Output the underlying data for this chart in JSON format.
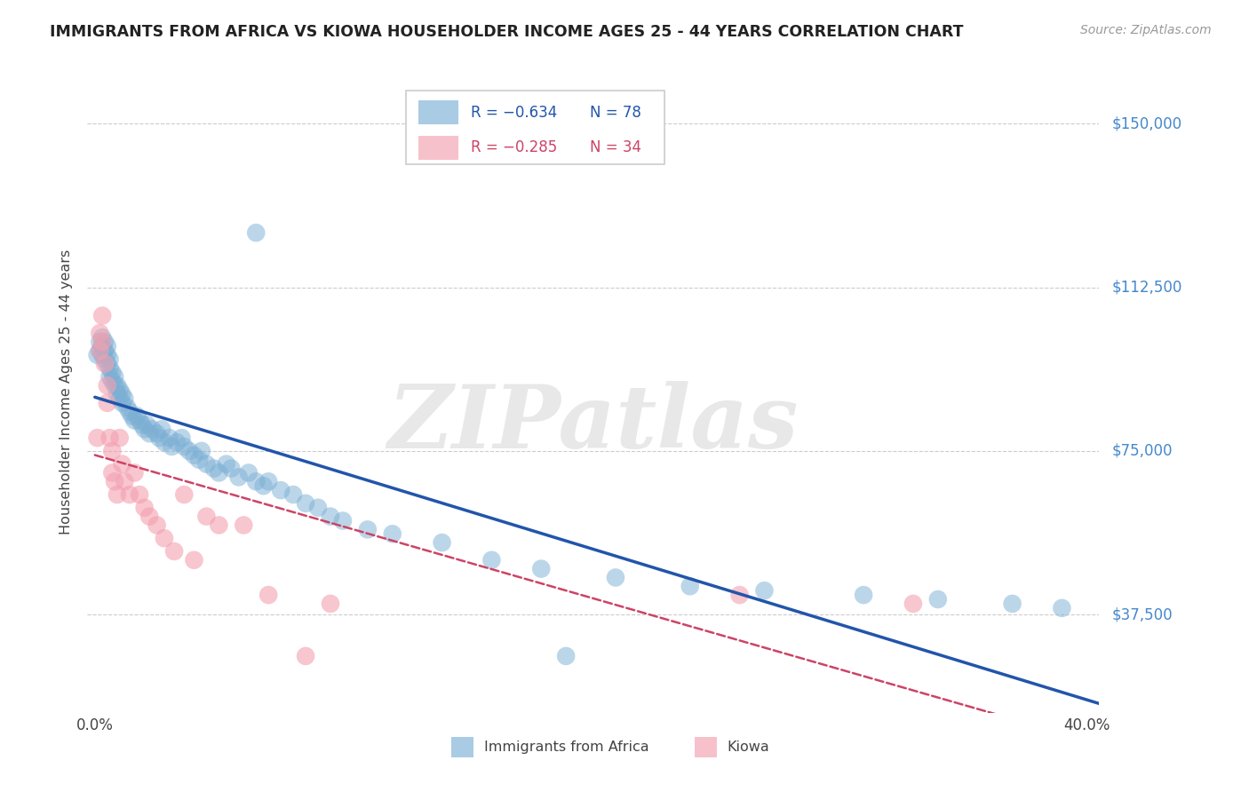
{
  "title": "IMMIGRANTS FROM AFRICA VS KIOWA HOUSEHOLDER INCOME AGES 25 - 44 YEARS CORRELATION CHART",
  "source": "Source: ZipAtlas.com",
  "ylabel": "Householder Income Ages 25 - 44 years",
  "ytick_labels": [
    "$37,500",
    "$75,000",
    "$112,500",
    "$150,000"
  ],
  "ytick_values": [
    37500,
    75000,
    112500,
    150000
  ],
  "ymin": 15000,
  "ymax": 162000,
  "xmin": -0.003,
  "xmax": 0.405,
  "legend_africa_r": "R = −0.634",
  "legend_africa_n": "N = 78",
  "legend_kiowa_r": "R = −0.285",
  "legend_kiowa_n": "N = 34",
  "africa_color": "#7BAFD4",
  "kiowa_color": "#F4A0B0",
  "africa_line_color": "#2255AA",
  "kiowa_line_color": "#CC4466",
  "background_color": "#FFFFFF",
  "grid_color": "#CCCCCC",
  "africa_points_x": [
    0.001,
    0.002,
    0.002,
    0.003,
    0.003,
    0.003,
    0.004,
    0.004,
    0.004,
    0.005,
    0.005,
    0.005,
    0.006,
    0.006,
    0.006,
    0.007,
    0.007,
    0.008,
    0.008,
    0.009,
    0.009,
    0.01,
    0.01,
    0.011,
    0.011,
    0.012,
    0.013,
    0.014,
    0.015,
    0.016,
    0.017,
    0.018,
    0.019,
    0.02,
    0.021,
    0.022,
    0.023,
    0.025,
    0.026,
    0.027,
    0.028,
    0.03,
    0.031,
    0.033,
    0.035,
    0.036,
    0.038,
    0.04,
    0.042,
    0.043,
    0.045,
    0.048,
    0.05,
    0.053,
    0.055,
    0.058,
    0.062,
    0.065,
    0.068,
    0.07,
    0.075,
    0.08,
    0.085,
    0.09,
    0.095,
    0.1,
    0.11,
    0.12,
    0.14,
    0.16,
    0.18,
    0.21,
    0.24,
    0.27,
    0.31,
    0.34,
    0.37,
    0.39
  ],
  "africa_points_y": [
    97000,
    100000,
    98000,
    101000,
    99000,
    97000,
    100000,
    98000,
    96000,
    99000,
    97000,
    95000,
    96000,
    94000,
    92000,
    93000,
    91000,
    92000,
    90000,
    90000,
    88000,
    89000,
    87000,
    88000,
    86000,
    87000,
    85000,
    84000,
    83000,
    82000,
    83000,
    82000,
    81000,
    80000,
    81000,
    79000,
    80000,
    79000,
    78000,
    80000,
    77000,
    78000,
    76000,
    77000,
    78000,
    76000,
    75000,
    74000,
    73000,
    75000,
    72000,
    71000,
    70000,
    72000,
    71000,
    69000,
    70000,
    68000,
    67000,
    68000,
    66000,
    65000,
    63000,
    62000,
    60000,
    59000,
    57000,
    56000,
    54000,
    50000,
    48000,
    46000,
    44000,
    43000,
    42000,
    41000,
    40000,
    39000
  ],
  "africa_outlier_x": [
    0.065
  ],
  "africa_outlier_y": [
    125000
  ],
  "africa_low_x": [
    0.19
  ],
  "africa_low_y": [
    28000
  ],
  "kiowa_points_x": [
    0.001,
    0.002,
    0.002,
    0.003,
    0.003,
    0.004,
    0.005,
    0.005,
    0.006,
    0.007,
    0.007,
    0.008,
    0.009,
    0.01,
    0.011,
    0.012,
    0.014,
    0.016,
    0.018,
    0.02,
    0.022,
    0.025,
    0.028,
    0.032,
    0.036,
    0.04,
    0.045,
    0.05,
    0.06,
    0.07,
    0.085,
    0.095,
    0.26,
    0.33
  ],
  "kiowa_points_y": [
    78000,
    102000,
    98000,
    106000,
    100000,
    95000,
    90000,
    86000,
    78000,
    75000,
    70000,
    68000,
    65000,
    78000,
    72000,
    68000,
    65000,
    70000,
    65000,
    62000,
    60000,
    58000,
    55000,
    52000,
    65000,
    50000,
    60000,
    58000,
    58000,
    42000,
    28000,
    40000,
    42000,
    40000
  ],
  "watermark": "ZIPatlas"
}
